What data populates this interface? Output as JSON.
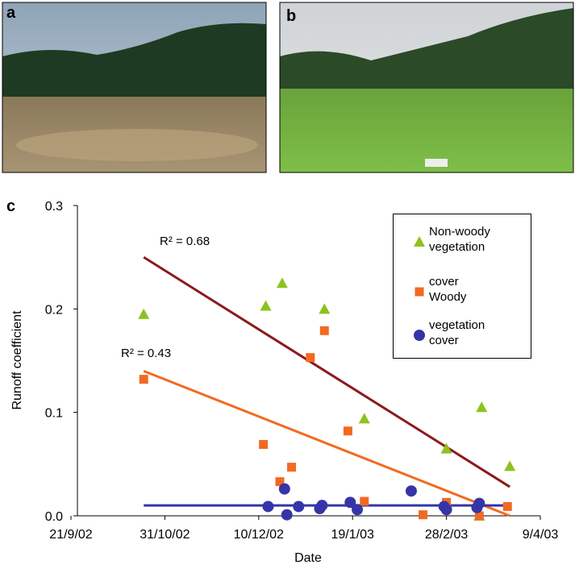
{
  "panels": {
    "a": "a",
    "b": "b",
    "c": "c"
  },
  "chart_data": {
    "type": "scatter",
    "ylabel": "Runoff coefficient",
    "xlabel": "Date",
    "ylim": [
      0,
      0.3
    ],
    "yticks": [
      {
        "value": 0,
        "label": "0.0"
      },
      0.1,
      0.2,
      0.3
    ],
    "xlim": [
      "2002-09-21",
      "2003-04-09"
    ],
    "xticks": [
      {
        "value": "2002-09-21",
        "label": "21/9/02"
      },
      {
        "value": "2002-10-31",
        "label": "31/10/02"
      },
      {
        "value": "2002-12-10",
        "label": "10/12/02"
      },
      {
        "value": "2003-01-19",
        "label": "19/1/03"
      },
      {
        "value": "2003-02-28",
        "label": "28/2/03"
      },
      {
        "value": "2003-04-09",
        "label": "9/4/03"
      }
    ],
    "series": [
      {
        "name": "Non-woody vegetation",
        "marker": "triangle",
        "color": "#8dc21f",
        "x": [
          "2002-10-22",
          "2002-12-13",
          "2002-12-20",
          "2003-01-07",
          "2003-01-24",
          "2003-02-28",
          "2003-03-15",
          "2003-03-14",
          "2003-03-27"
        ],
        "values": [
          0.195,
          0.203,
          0.225,
          0.2,
          0.094,
          0.065,
          0.105,
          0.0,
          0.048
        ]
      },
      {
        "name": "cover Woody",
        "marker": "square",
        "color": "#f26a21",
        "x": [
          "2002-10-22",
          "2002-12-12",
          "2002-12-19",
          "2002-12-24",
          "2003-01-01",
          "2003-01-07",
          "2003-01-17",
          "2003-01-24",
          "2003-02-18",
          "2003-02-28",
          "2003-03-14",
          "2003-03-26"
        ],
        "values": [
          0.132,
          0.069,
          0.033,
          0.047,
          0.153,
          0.179,
          0.082,
          0.014,
          0.001,
          0.013,
          0.0,
          0.009
        ]
      },
      {
        "name": "vegetation cover",
        "marker": "circle",
        "color": "#3535a8",
        "x": [
          "2002-12-14",
          "2002-12-21",
          "2002-12-22",
          "2002-12-27",
          "2003-01-05",
          "2003-01-06",
          "2003-01-18",
          "2003-01-21",
          "2003-02-13",
          "2003-02-27",
          "2003-02-28",
          "2003-03-13",
          "2003-03-14"
        ],
        "values": [
          0.009,
          0.026,
          0.001,
          0.009,
          0.007,
          0.01,
          0.013,
          0.006,
          0.024,
          0.009,
          0.006,
          0.008,
          0.012
        ]
      }
    ],
    "trendlines": [
      {
        "color": "#8b1a1a",
        "x": [
          "2002-10-22",
          "2003-03-27"
        ],
        "values": [
          0.25,
          0.028
        ]
      },
      {
        "color": "#f26a21",
        "x": [
          "2002-10-22",
          "2003-03-27"
        ],
        "values": [
          0.14,
          0.0
        ]
      },
      {
        "color": "#3535a8",
        "x": [
          "2002-10-22",
          "2003-03-27"
        ],
        "values": [
          0.01,
          0.01
        ]
      }
    ],
    "annotations": [
      "R² = 0.68",
      "R² = 0.43"
    ]
  }
}
